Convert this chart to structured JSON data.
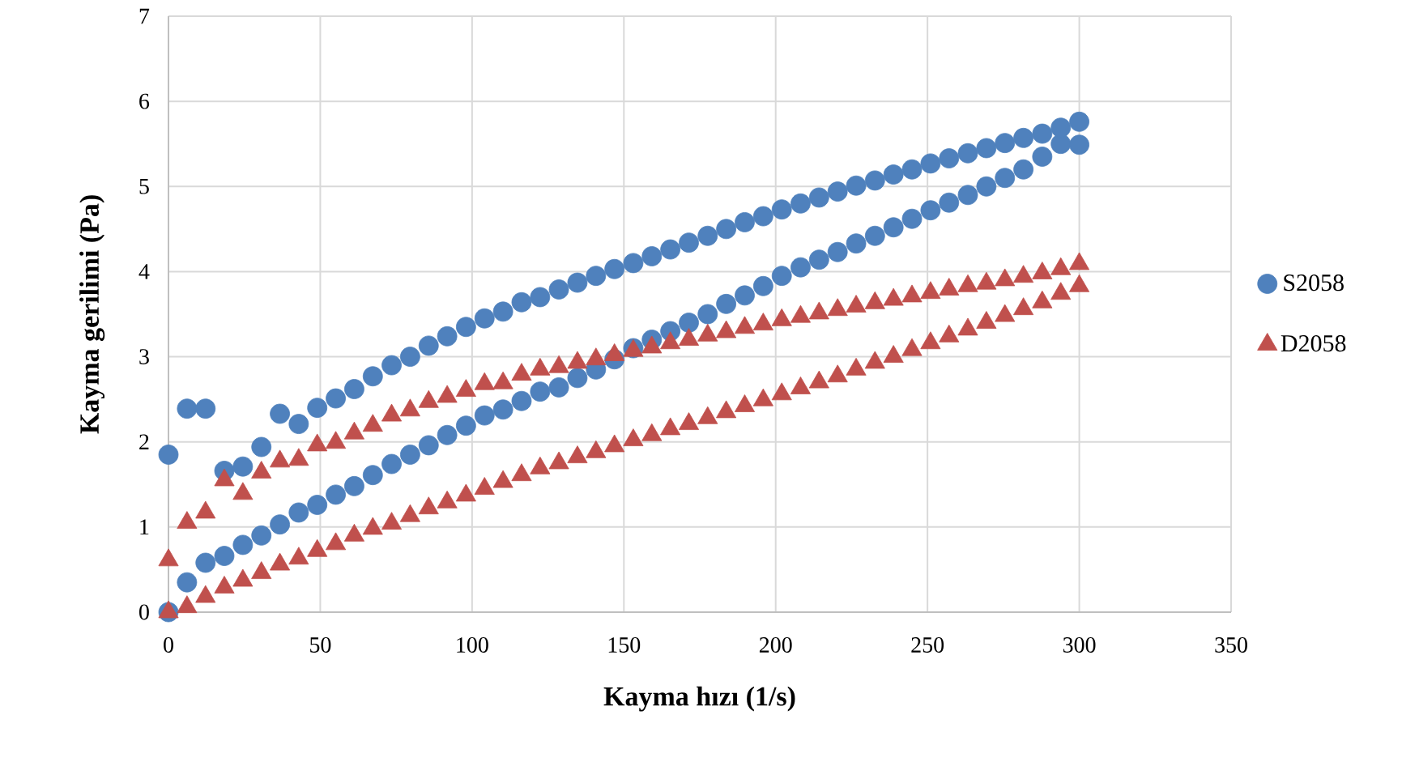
{
  "chart_data": {
    "type": "scatter",
    "xlabel": "Kayma hızı (1/s)",
    "ylabel": "Kayma gerilimi (Pa)",
    "x": [
      0,
      6.1,
      12.2,
      18.4,
      24.5,
      30.6,
      36.7,
      42.9,
      49,
      55.1,
      61.2,
      67.3,
      73.5,
      79.6,
      85.7,
      91.8,
      98,
      104.1,
      110.2,
      116.3,
      122.4,
      128.6,
      134.7,
      140.8,
      146.9,
      153.1,
      159.2,
      165.3,
      171.4,
      177.6,
      183.7,
      189.8,
      195.9,
      202,
      208.2,
      214.3,
      220.4,
      226.5,
      232.7,
      238.8,
      244.9,
      251,
      257.1,
      263.3,
      269.4,
      275.5,
      281.6,
      287.8,
      293.9,
      300,
      0,
      6.1,
      12.2,
      18.4,
      24.5,
      30.6,
      36.7,
      42.9,
      49,
      55.1,
      61.2,
      67.3,
      73.5,
      79.6,
      85.7,
      91.8,
      98,
      104.1,
      110.2,
      116.3,
      122.4,
      128.6,
      134.7,
      140.8,
      146.9,
      153.1,
      159.2,
      165.3,
      171.4,
      177.6,
      183.7,
      189.8,
      195.9,
      202,
      208.2,
      214.3,
      220.4,
      226.5,
      232.7,
      238.8,
      244.9,
      251,
      257.1,
      263.3,
      269.4,
      275.5,
      281.6,
      287.8,
      293.9,
      300
    ],
    "series": [
      {
        "name": "S2058",
        "color": "#4f81bd",
        "marker": "circle",
        "values": [
          0,
          0.35,
          0.58,
          0.66,
          0.79,
          0.9,
          1.03,
          1.17,
          1.26,
          1.38,
          1.48,
          1.61,
          1.74,
          1.85,
          1.96,
          2.08,
          2.19,
          2.31,
          2.38,
          2.48,
          2.59,
          2.64,
          2.75,
          2.85,
          2.97,
          3.1,
          3.2,
          3.3,
          3.4,
          3.5,
          3.62,
          3.72,
          3.83,
          3.95,
          4.05,
          4.14,
          4.23,
          4.33,
          4.42,
          4.52,
          4.62,
          4.72,
          4.81,
          4.9,
          5.0,
          5.1,
          5.2,
          5.35,
          5.5,
          5.49,
          1.85,
          2.39,
          2.39,
          1.66,
          1.71,
          1.94,
          2.33,
          2.21,
          2.4,
          2.51,
          2.62,
          2.77,
          2.9,
          3.0,
          3.13,
          3.24,
          3.35,
          3.45,
          3.53,
          3.64,
          3.7,
          3.79,
          3.87,
          3.95,
          4.03,
          4.1,
          4.18,
          4.26,
          4.34,
          4.42,
          4.5,
          4.58,
          4.65,
          4.73,
          4.8,
          4.87,
          4.94,
          5.01,
          5.07,
          5.14,
          5.2,
          5.27,
          5.33,
          5.39,
          5.45,
          5.51,
          5.57,
          5.62,
          5.69,
          5.76
        ]
      },
      {
        "name": "D2058",
        "color": "#c0504d",
        "marker": "triangle",
        "values": [
          0,
          0.06,
          0.18,
          0.29,
          0.37,
          0.46,
          0.56,
          0.63,
          0.72,
          0.8,
          0.9,
          0.98,
          1.04,
          1.13,
          1.22,
          1.29,
          1.37,
          1.45,
          1.53,
          1.61,
          1.69,
          1.75,
          1.82,
          1.88,
          1.95,
          2.02,
          2.08,
          2.15,
          2.21,
          2.28,
          2.35,
          2.42,
          2.49,
          2.56,
          2.63,
          2.7,
          2.77,
          2.85,
          2.93,
          3.0,
          3.08,
          3.16,
          3.24,
          3.32,
          3.4,
          3.48,
          3.56,
          3.64,
          3.74,
          3.83,
          0.61,
          1.05,
          1.17,
          1.55,
          1.39,
          1.64,
          1.77,
          1.79,
          1.96,
          1.99,
          2.1,
          2.19,
          2.31,
          2.37,
          2.47,
          2.53,
          2.6,
          2.68,
          2.69,
          2.79,
          2.85,
          2.88,
          2.93,
          2.97,
          3.02,
          3.07,
          3.11,
          3.16,
          3.2,
          3.25,
          3.29,
          3.34,
          3.38,
          3.43,
          3.47,
          3.51,
          3.55,
          3.59,
          3.63,
          3.67,
          3.71,
          3.75,
          3.79,
          3.83,
          3.86,
          3.9,
          3.94,
          3.98,
          4.03,
          4.09
        ]
      }
    ],
    "xlim": [
      0,
      350
    ],
    "ylim": [
      0,
      7
    ],
    "xticks": [
      0,
      50,
      100,
      150,
      200,
      250,
      300,
      350
    ],
    "yticks": [
      0,
      1,
      2,
      3,
      4,
      5,
      6,
      7
    ],
    "grid": true,
    "legend": "right"
  }
}
